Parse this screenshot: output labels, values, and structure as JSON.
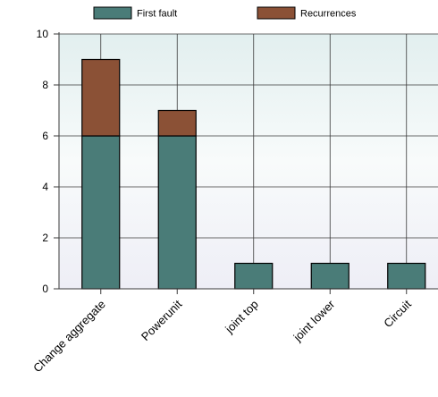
{
  "chart_data": {
    "type": "bar",
    "stacked": true,
    "categories": [
      "Change aggregate",
      "Powerunit",
      "joint top",
      "joint lower",
      "Circuit"
    ],
    "series": [
      {
        "name": "First fault",
        "values": [
          6,
          6,
          1,
          1,
          1
        ],
        "color": "#4a7c78"
      },
      {
        "name": "Recurrences",
        "values": [
          3,
          1,
          0,
          0,
          0
        ],
        "color": "#8b5136"
      }
    ],
    "ylim": [
      0,
      10
    ],
    "yticks": [
      0,
      2,
      4,
      6,
      8,
      10
    ],
    "grid": true,
    "legend_position": "top",
    "background_gradient": [
      "#e2efef",
      "#eeeef6"
    ]
  }
}
